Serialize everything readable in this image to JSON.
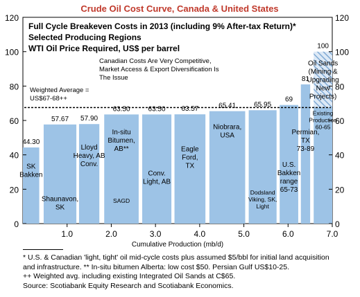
{
  "chart_data": {
    "type": "bar",
    "title": "Crude Oil Cost Curve, Canada & United States",
    "subtitle_lines": [
      "Full Cycle Breakeven Costs in 2013 (including 9% After-tax Return)*",
      "Selected Producing Regions",
      "WTI Oil Price Required, US$ per barrel"
    ],
    "annotation_lines": [
      "Canadian Costs Are Very Competitive,",
      "Market Access & Export Diversification Is",
      "The Issue"
    ],
    "weighted_average_label_lines": [
      "Weighted Average =",
      "US$67-68++"
    ],
    "weighted_average_value": 67.5,
    "xlabel": "Cumulative Production (mb/d)",
    "x_ticks": [
      "1.0",
      "2.0",
      "3.0",
      "4.0",
      "5.0",
      "6.0",
      "7.0"
    ],
    "x_tick_values": [
      1.0,
      2.0,
      3.0,
      4.0,
      5.0,
      6.0,
      7.0
    ],
    "xlim": [
      0,
      7.0
    ],
    "ylim": [
      0,
      120
    ],
    "y_ticks": [
      "0",
      "20",
      "40",
      "60",
      "80",
      "100",
      "120"
    ],
    "y_tick_values": [
      0,
      20,
      40,
      60,
      80,
      100,
      120
    ],
    "bars": [
      {
        "value_label": "44.30",
        "value": 44.3,
        "start": 0.0,
        "end": 0.37,
        "name_lines": [
          "SK",
          "Bakken"
        ],
        "name_y": 32,
        "style": "solid"
      },
      {
        "value_label": "57.67",
        "value": 57.67,
        "start": 0.47,
        "end": 1.21,
        "name_lines": [
          "Shaunavon,",
          "SK"
        ],
        "name_y": 13,
        "style": "solid"
      },
      {
        "value_label": "57.90",
        "value": 57.9,
        "start": 1.27,
        "end": 1.73,
        "name_lines": [
          "Lloyd",
          "Heavy, AB",
          "Conv."
        ],
        "name_y": 43,
        "style": "solid"
      },
      {
        "value_label": "63.50",
        "value": 63.5,
        "start": 1.84,
        "end": 2.62,
        "name_lines": [
          "In-situ",
          "Bitumen,",
          "AB**"
        ],
        "name_y": 52,
        "style": "solid",
        "extra_label": "SAGD",
        "extra_y": 12
      },
      {
        "value_label": "63.50",
        "value": 63.5,
        "start": 2.7,
        "end": 3.36,
        "name_lines": [
          "Conv.",
          "Light, AB"
        ],
        "name_y": 28,
        "style": "solid"
      },
      {
        "value_label": "63.57",
        "value": 63.57,
        "start": 3.43,
        "end": 4.13,
        "name_lines": [
          "Eagle",
          "Ford,",
          "TX"
        ],
        "name_y": 42,
        "style": "solid"
      },
      {
        "value_label": "65.41",
        "value": 65.41,
        "start": 4.22,
        "end": 5.03,
        "name_lines": [
          "Niobrara,",
          "USA"
        ],
        "name_y": 55,
        "style": "solid"
      },
      {
        "value_label": "65.95",
        "value": 65.95,
        "start": 5.11,
        "end": 5.74,
        "name_lines": [
          "Dodsland",
          "Viking, SK,",
          "Light"
        ],
        "name_y": 17,
        "style": "solid",
        "small": true
      },
      {
        "value_label": "69",
        "value": 69,
        "start": 5.81,
        "end": 6.23,
        "name_lines": [
          "U.S.",
          "Bakken",
          "range",
          "65-73"
        ],
        "name_y": 33,
        "style": "solid"
      },
      {
        "value_label": "81",
        "value": 81,
        "start": 6.29,
        "end": 6.5,
        "name_lines": [
          "Permian,",
          "TX",
          "73-89"
        ],
        "name_y": 52,
        "style": "solid"
      },
      {
        "value_label": "100",
        "value": 100,
        "start": 6.58,
        "end": 7.0,
        "name_lines": [
          "Oil Sands",
          "(Mining &",
          "Upgrading",
          "New",
          "Projects)"
        ],
        "name_y": 92,
        "style": "hatched",
        "extra_lines": [
          "Existing",
          "Production",
          "60-65"
        ],
        "extra_y": 63
      }
    ]
  },
  "footnotes": [
    "* U.S. & Canadian 'light, tight' oil mid-cycle costs plus assumed $5/bbl for initial land acquisition",
    "and infrastructure. ** In-situ bitumen Alberta: low cost $50. Persian Gulf US$10-25.",
    "++ Weighted avg. including existing Integrated Oil Sands at C$65.",
    "Source: Scotiabank Equity Research and Scotiabank Economics."
  ],
  "colors": {
    "title": "#c0392b",
    "bar_fill": "#9dc3e6",
    "hatch": "#7fa9d4",
    "plot_border": "#000000",
    "average_line": "#000000"
  }
}
